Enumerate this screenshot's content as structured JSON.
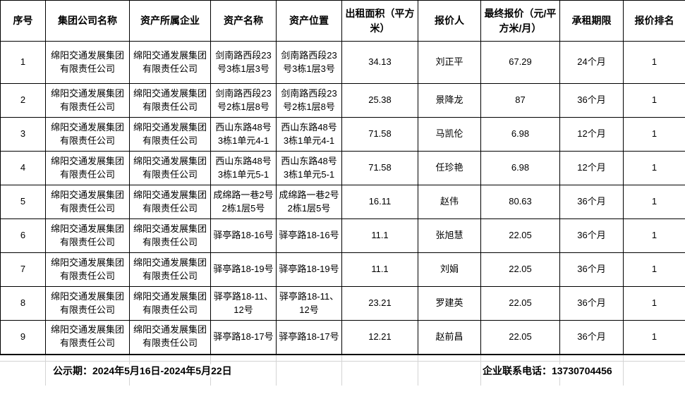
{
  "table": {
    "headers": [
      "序号",
      "集团公司名称",
      "资产所属企业",
      "资产名称",
      "资产位置",
      "出租面积（平方米）",
      "报价人",
      "最终报价（元/平方米/月）",
      "承租期限",
      "报价排名"
    ],
    "rows": [
      {
        "cells": [
          "1",
          "绵阳交通发展集团有限责任公司",
          "绵阳交通发展集团有限责任公司",
          "剑南路西段23号3栋1层3号",
          "剑南路西段23号3栋1层3号",
          "34.13",
          "刘正平",
          "67.29",
          "24个月",
          "1"
        ]
      },
      {
        "cells": [
          "2",
          "绵阳交通发展集团有限责任公司",
          "绵阳交通发展集团有限责任公司",
          "剑南路西段23号2栋1层8号",
          "剑南路西段23号2栋1层8号",
          "25.38",
          "景降龙",
          "87",
          "36个月",
          "1"
        ]
      },
      {
        "cells": [
          "3",
          "绵阳交通发展集团有限责任公司",
          "绵阳交通发展集团有限责任公司",
          "西山东路48号3栋1单元4-1",
          "西山东路48号3栋1单元4-1",
          "71.58",
          "马凯伦",
          "6.98",
          "12个月",
          "1"
        ]
      },
      {
        "cells": [
          "4",
          "绵阳交通发展集团有限责任公司",
          "绵阳交通发展集团有限责任公司",
          "西山东路48号3栋1单元5-1",
          "西山东路48号3栋1单元5-1",
          "71.58",
          "任珍艳",
          "6.98",
          "12个月",
          "1"
        ]
      },
      {
        "cells": [
          "5",
          "绵阳交通发展集团有限责任公司",
          "绵阳交通发展集团有限责任公司",
          "成绵路一巷2号2栋1层5号",
          "成绵路一巷2号2栋1层5号",
          "16.11",
          "赵伟",
          "80.63",
          "36个月",
          "1"
        ]
      },
      {
        "cells": [
          "6",
          "绵阳交通发展集团有限责任公司",
          "绵阳交通发展集团有限责任公司",
          "驿亭路18-16号",
          "驿亭路18-16号",
          "11.1",
          "张旭慧",
          "22.05",
          "36个月",
          "1"
        ]
      },
      {
        "cells": [
          "7",
          "绵阳交通发展集团有限责任公司",
          "绵阳交通发展集团有限责任公司",
          "驿亭路18-19号",
          "驿亭路18-19号",
          "11.1",
          "刘娟",
          "22.05",
          "36个月",
          "1"
        ]
      },
      {
        "cells": [
          "8",
          "绵阳交通发展集团有限责任公司",
          "绵阳交通发展集团有限责任公司",
          "驿亭路18-11、12号",
          "驿亭路18-11、12号",
          "23.21",
          "罗建英",
          "22.05",
          "36个月",
          "1"
        ]
      },
      {
        "cells": [
          "9",
          "绵阳交通发展集团有限责任公司",
          "绵阳交通发展集团有限责任公司",
          "驿亭路18-17号",
          "驿亭路18-17号",
          "12.21",
          "赵前昌",
          "22.05",
          "36个月",
          "1"
        ]
      }
    ]
  },
  "footer": {
    "publicity_period": "公示期：2024年5月16日-2024年5月22日",
    "contact_phone": "企业联系电话：13730704456"
  },
  "colors": {
    "border": "#000000",
    "gridline": "#d4d4d4",
    "text": "#000000",
    "background": "#ffffff"
  }
}
